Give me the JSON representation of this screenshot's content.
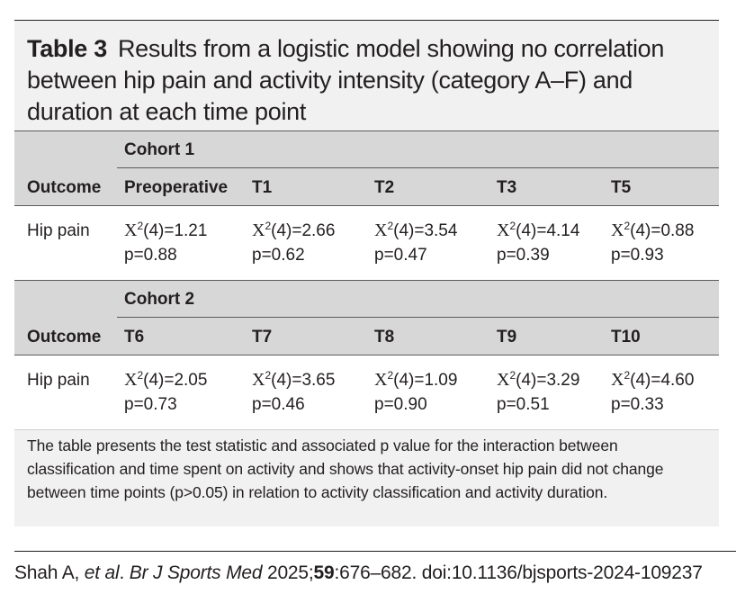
{
  "caption": {
    "label": "Table 3",
    "text": "Results from a logistic model showing no correlation between hip pain and activity intensity (category A–F) and duration at each time point"
  },
  "cohorts": [
    {
      "name": "Cohort 1",
      "outcome_header": "Outcome",
      "columns": [
        "Preoperative",
        "T1",
        "T2",
        "T3",
        "T5"
      ],
      "row_label": "Hip pain",
      "stats": [
        {
          "chi_prefix": "X",
          "chi_exp": "2",
          "chi_rest": "(4)=1.21",
          "p": "p=0.88"
        },
        {
          "chi_prefix": "X",
          "chi_exp": "2",
          "chi_rest": "(4)=2.66",
          "p": "p=0.62"
        },
        {
          "chi_prefix": "X",
          "chi_exp": "2",
          "chi_rest": "(4)=3.54",
          "p": "p=0.47"
        },
        {
          "chi_prefix": "X",
          "chi_exp": "2",
          "chi_rest": "(4)=4.14",
          "p": "p=0.39"
        },
        {
          "chi_prefix": "X",
          "chi_exp": "2",
          "chi_rest": "(4)=0.88",
          "p": "p=0.93"
        }
      ]
    },
    {
      "name": "Cohort 2",
      "outcome_header": "Outcome",
      "columns": [
        "T6",
        "T7",
        "T8",
        "T9",
        "T10"
      ],
      "row_label": "Hip pain",
      "stats": [
        {
          "chi_prefix": "X",
          "chi_exp": "2",
          "chi_rest": "(4)=2.05",
          "p": "p=0.73"
        },
        {
          "chi_prefix": "X",
          "chi_exp": "2",
          "chi_rest": "(4)=3.65",
          "p": "p=0.46"
        },
        {
          "chi_prefix": "X",
          "chi_exp": "2",
          "chi_rest": "(4)=1.09",
          "p": "p=0.90"
        },
        {
          "chi_prefix": "X",
          "chi_exp": "2",
          "chi_rest": "(4)=3.29",
          "p": "p=0.51"
        },
        {
          "chi_prefix": "X",
          "chi_exp": "2",
          "chi_rest": "(4)=4.60",
          "p": "p=0.33"
        }
      ]
    }
  ],
  "footnote": "The table presents the test statistic and associated p value for the interaction between classification and time spent on activity and shows that activity-onset hip pain did not change between time points (p>0.05) in relation to activity classification and activity duration.",
  "citation": {
    "authors": "Shah A, ",
    "etal": "et al",
    "sep1": ". ",
    "journal": "Br J Sports Med",
    "year": " 2025;",
    "volume": "59",
    "rest": ":676–682. doi:10.1136/bjsports-2024-109237"
  }
}
